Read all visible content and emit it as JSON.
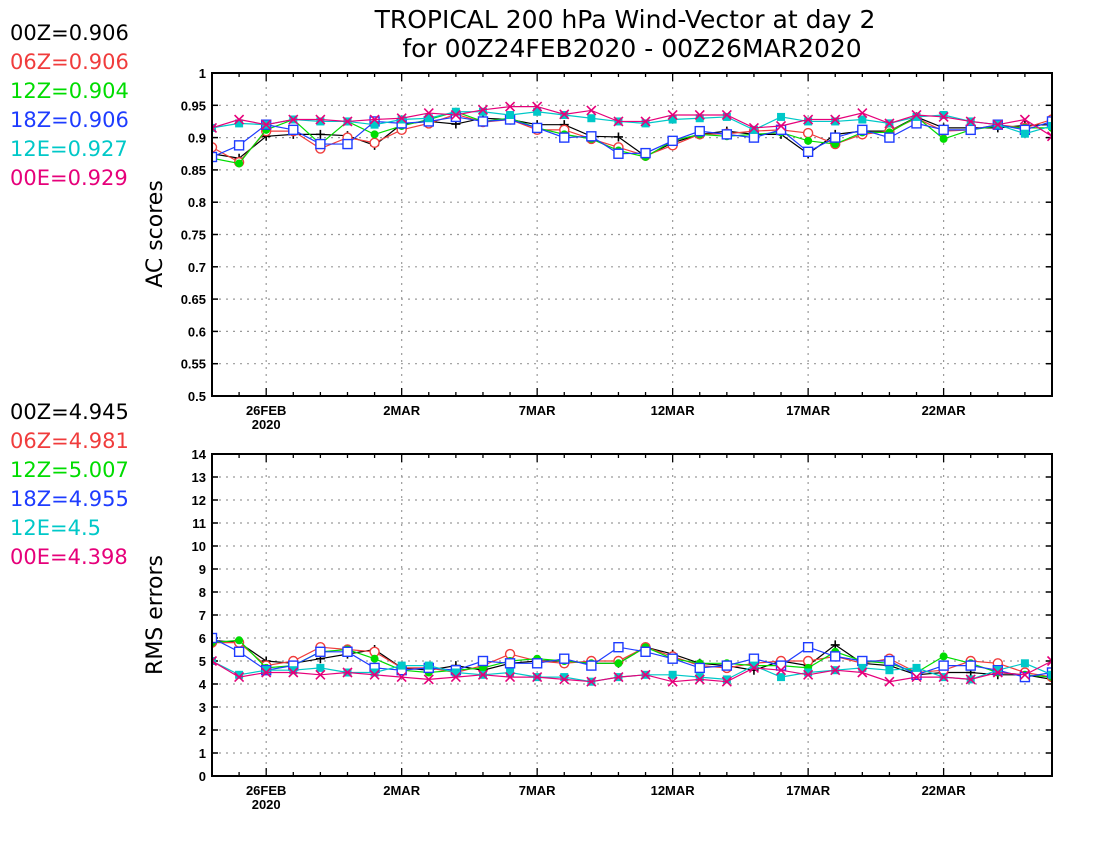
{
  "title": {
    "line1": "TROPICAL 200 hPa Wind-Vector at day 2",
    "line2": "for 00Z24FEB2020 - 00Z26MAR2020"
  },
  "chart_data": [
    {
      "type": "line",
      "ylabel": "AC scores",
      "ylim": [
        0.5,
        1.0
      ],
      "yticks": [
        "0.5",
        "0.55",
        "0.6",
        "0.65",
        "0.7",
        "0.75",
        "0.8",
        "0.85",
        "0.9",
        "0.95",
        "1"
      ],
      "xlim": [
        1,
        32
      ],
      "xticks": [
        {
          "x": 3,
          "label": "26FEB",
          "sub": "2020"
        },
        {
          "x": 8,
          "label": "2MAR",
          "sub": ""
        },
        {
          "x": 13,
          "label": "7MAR",
          "sub": ""
        },
        {
          "x": 18,
          "label": "12MAR",
          "sub": ""
        },
        {
          "x": 23,
          "label": "17MAR",
          "sub": ""
        },
        {
          "x": 28,
          "label": "22MAR",
          "sub": ""
        }
      ],
      "grid": true,
      "legend": [
        {
          "label": "00Z=0.906",
          "color": "#000000"
        },
        {
          "label": "06Z=0.906",
          "color": "#f03c3c"
        },
        {
          "label": "12Z=0.904",
          "color": "#00dc00"
        },
        {
          "label": "18Z=0.906",
          "color": "#1e3cff"
        },
        {
          "label": "12E=0.927",
          "color": "#00c8c8"
        },
        {
          "label": "00E=0.929",
          "color": "#e6007a"
        }
      ],
      "x": [
        1,
        2,
        3,
        4,
        5,
        6,
        7,
        8,
        9,
        10,
        11,
        12,
        13,
        14,
        15,
        16,
        17,
        18,
        19,
        20,
        21,
        22,
        23,
        24,
        25,
        26,
        27,
        28,
        29,
        30,
        31,
        32
      ],
      "series": [
        {
          "marker": "plus",
          "color": "#000000",
          "values": [
            0.875,
            0.868,
            0.902,
            0.905,
            0.905,
            0.903,
            0.888,
            0.921,
            0.925,
            0.921,
            0.93,
            0.928,
            0.92,
            0.92,
            0.902,
            0.901,
            0.871,
            0.892,
            0.905,
            0.91,
            0.905,
            0.905,
            0.875,
            0.905,
            0.91,
            0.91,
            0.932,
            0.915,
            0.915,
            0.915,
            0.919,
            0.92
          ]
        },
        {
          "marker": "circle",
          "color": "#f03c3c",
          "values": [
            0.885,
            0.862,
            0.91,
            0.91,
            0.883,
            0.9,
            0.892,
            0.912,
            0.922,
            0.936,
            0.924,
            0.928,
            0.912,
            0.912,
            0.898,
            0.885,
            0.872,
            0.888,
            0.905,
            0.906,
            0.91,
            0.912,
            0.907,
            0.89,
            0.905,
            0.91,
            0.93,
            0.91,
            0.912,
            0.92,
            0.915,
            0.928
          ]
        },
        {
          "marker": "dot",
          "color": "#00dc00",
          "values": [
            0.868,
            0.86,
            0.912,
            0.928,
            0.89,
            0.925,
            0.905,
            0.918,
            0.928,
            0.94,
            0.925,
            0.93,
            0.915,
            0.905,
            0.898,
            0.88,
            0.87,
            0.895,
            0.905,
            0.902,
            0.905,
            0.908,
            0.895,
            0.89,
            0.908,
            0.908,
            0.932,
            0.898,
            0.912,
            0.918,
            0.915,
            0.915
          ]
        },
        {
          "marker": "square",
          "color": "#1e3cff",
          "values": [
            0.87,
            0.888,
            0.92,
            0.912,
            0.89,
            0.89,
            0.925,
            0.922,
            0.925,
            0.932,
            0.925,
            0.928,
            0.915,
            0.9,
            0.902,
            0.875,
            0.876,
            0.895,
            0.91,
            0.905,
            0.9,
            0.912,
            0.878,
            0.9,
            0.912,
            0.9,
            0.922,
            0.912,
            0.912,
            0.92,
            0.912,
            0.925
          ]
        },
        {
          "marker": "filled-square",
          "color": "#00c8c8",
          "values": [
            0.915,
            0.922,
            0.92,
            0.928,
            0.925,
            0.925,
            0.92,
            0.928,
            0.93,
            0.94,
            0.94,
            0.935,
            0.94,
            0.935,
            0.93,
            0.925,
            0.922,
            0.928,
            0.93,
            0.932,
            0.912,
            0.932,
            0.925,
            0.925,
            0.928,
            0.922,
            0.932,
            0.935,
            0.925,
            0.92,
            0.906,
            0.918
          ]
        },
        {
          "marker": "x",
          "color": "#e6007a",
          "values": [
            0.915,
            0.928,
            0.92,
            0.928,
            0.928,
            0.925,
            0.928,
            0.93,
            0.938,
            0.935,
            0.943,
            0.948,
            0.948,
            0.936,
            0.942,
            0.925,
            0.925,
            0.935,
            0.935,
            0.935,
            0.915,
            0.918,
            0.928,
            0.928,
            0.938,
            0.922,
            0.935,
            0.932,
            0.925,
            0.92,
            0.928,
            0.902
          ]
        }
      ]
    },
    {
      "type": "line",
      "ylabel": "RMS errors",
      "ylim": [
        0,
        14
      ],
      "yticks": [
        "0",
        "1",
        "2",
        "3",
        "4",
        "5",
        "6",
        "7",
        "8",
        "9",
        "10",
        "11",
        "12",
        "13",
        "14"
      ],
      "xlim": [
        1,
        32
      ],
      "xticks": [
        {
          "x": 3,
          "label": "26FEB",
          "sub": "2020"
        },
        {
          "x": 8,
          "label": "2MAR",
          "sub": ""
        },
        {
          "x": 13,
          "label": "7MAR",
          "sub": ""
        },
        {
          "x": 18,
          "label": "12MAR",
          "sub": ""
        },
        {
          "x": 23,
          "label": "17MAR",
          "sub": ""
        },
        {
          "x": 28,
          "label": "22MAR",
          "sub": ""
        }
      ],
      "grid": true,
      "legend": [
        {
          "label": "00Z=4.945",
          "color": "#000000"
        },
        {
          "label": "06Z=4.981",
          "color": "#f03c3c"
        },
        {
          "label": "12Z=5.007",
          "color": "#00dc00"
        },
        {
          "label": "18Z=4.955",
          "color": "#1e3cff"
        },
        {
          "label": "12E=4.5",
          "color": "#00c8c8"
        },
        {
          "label": "00E=4.398",
          "color": "#e6007a"
        }
      ],
      "x": [
        1,
        2,
        3,
        4,
        5,
        6,
        7,
        8,
        9,
        10,
        11,
        12,
        13,
        14,
        15,
        16,
        17,
        18,
        19,
        20,
        21,
        22,
        23,
        24,
        25,
        26,
        27,
        28,
        29,
        30,
        31,
        32
      ],
      "series": [
        {
          "marker": "plus",
          "color": "#000000",
          "values": [
            5.9,
            5.8,
            5.0,
            4.9,
            5.1,
            5.3,
            5.5,
            4.7,
            4.6,
            4.8,
            4.6,
            4.9,
            5.0,
            5.0,
            4.9,
            4.9,
            5.6,
            5.3,
            4.9,
            4.8,
            4.6,
            5.0,
            4.8,
            5.7,
            4.9,
            4.8,
            4.4,
            4.5,
            4.5,
            4.4,
            4.4,
            4.2
          ]
        },
        {
          "marker": "circle",
          "color": "#f03c3c",
          "values": [
            5.8,
            5.8,
            4.8,
            5.0,
            5.6,
            5.5,
            5.4,
            4.7,
            4.7,
            4.5,
            4.8,
            5.3,
            5.0,
            4.9,
            5.0,
            5.0,
            5.6,
            5.2,
            4.8,
            4.7,
            4.9,
            5.0,
            5.0,
            5.2,
            4.9,
            5.1,
            4.5,
            4.6,
            5.0,
            4.9,
            4.5,
            4.3
          ]
        },
        {
          "marker": "dot",
          "color": "#00dc00",
          "values": [
            5.8,
            5.9,
            4.7,
            4.8,
            5.4,
            5.5,
            5.1,
            4.6,
            4.5,
            4.6,
            4.7,
            5.0,
            5.1,
            5.0,
            4.9,
            4.9,
            5.6,
            5.1,
            4.9,
            4.9,
            4.8,
            4.8,
            4.7,
            5.4,
            5.0,
            4.9,
            4.5,
            5.2,
            4.9,
            4.5,
            4.4,
            4.3
          ]
        },
        {
          "marker": "square",
          "color": "#1e3cff",
          "values": [
            6.0,
            5.4,
            4.6,
            4.8,
            5.4,
            5.4,
            4.7,
            4.6,
            4.7,
            4.6,
            5.0,
            4.9,
            4.9,
            5.1,
            4.8,
            5.6,
            5.4,
            5.1,
            4.7,
            4.8,
            5.1,
            4.8,
            5.6,
            5.2,
            5.0,
            5.0,
            4.4,
            4.8,
            4.8,
            4.6,
            4.3,
            4.5
          ]
        },
        {
          "marker": "filled-square",
          "color": "#00c8c8",
          "values": [
            5.0,
            4.4,
            4.6,
            4.6,
            4.7,
            4.5,
            4.5,
            4.8,
            4.8,
            4.5,
            4.4,
            4.5,
            4.3,
            4.3,
            4.1,
            4.3,
            4.4,
            4.4,
            4.3,
            4.2,
            4.8,
            4.3,
            4.5,
            4.6,
            4.7,
            4.6,
            4.7,
            4.3,
            4.2,
            4.6,
            4.9,
            4.4
          ]
        },
        {
          "marker": "x",
          "color": "#e6007a",
          "values": [
            5.0,
            4.3,
            4.5,
            4.5,
            4.4,
            4.5,
            4.4,
            4.3,
            4.2,
            4.3,
            4.4,
            4.3,
            4.3,
            4.2,
            4.1,
            4.3,
            4.4,
            4.1,
            4.2,
            4.1,
            4.7,
            4.6,
            4.4,
            4.6,
            4.5,
            4.1,
            4.3,
            4.3,
            4.2,
            4.5,
            4.4,
            5.0
          ]
        }
      ]
    }
  ]
}
